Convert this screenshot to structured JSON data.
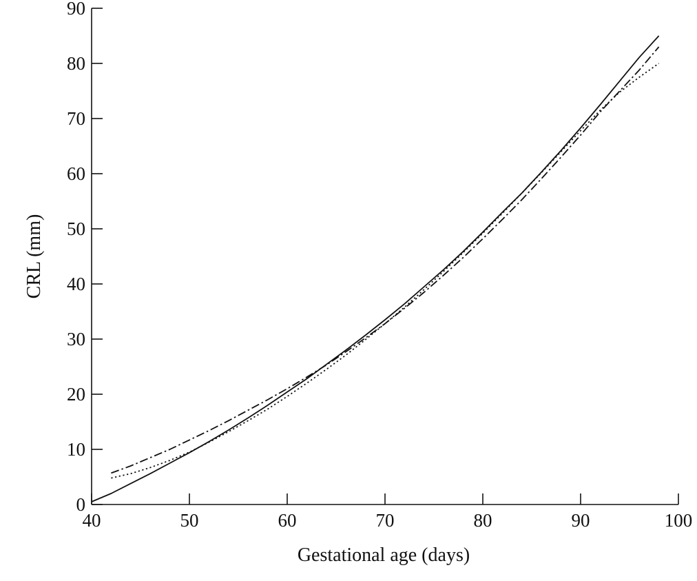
{
  "chart_data": {
    "type": "line",
    "title": "",
    "xlabel": "Gestational age (days)",
    "ylabel": "CRL (mm)",
    "xlim": [
      40,
      100
    ],
    "ylim": [
      0,
      90
    ],
    "x_ticks": [
      "40",
      "50",
      "60",
      "70",
      "80",
      "90",
      "100"
    ],
    "y_ticks": [
      "0",
      "10",
      "20",
      "30",
      "40",
      "50",
      "60",
      "70",
      "80",
      "90"
    ],
    "grid": false,
    "legend": "none",
    "series": [
      {
        "style": "solid",
        "x": [
          40,
          42,
          44,
          46,
          48,
          50,
          52,
          54,
          56,
          58,
          60,
          62,
          64,
          66,
          68,
          70,
          72,
          74,
          76,
          78,
          80,
          82,
          84,
          86,
          88,
          90,
          92,
          94,
          96,
          98
        ],
        "y": [
          0.5,
          2.0,
          3.8,
          5.6,
          7.5,
          9.4,
          11.4,
          13.5,
          15.7,
          18.0,
          20.4,
          22.8,
          25.4,
          28.0,
          30.7,
          33.5,
          36.4,
          39.5,
          42.6,
          45.9,
          49.4,
          53.0,
          56.5,
          60.3,
          64.2,
          68.3,
          72.5,
          76.8,
          81.1,
          85.0
        ]
      },
      {
        "style": "dotted",
        "x": [
          42,
          44,
          46,
          48,
          50,
          52,
          54,
          56,
          58,
          60,
          62,
          64,
          66,
          68,
          70,
          72,
          74,
          76,
          78,
          80,
          82,
          84,
          86,
          88,
          90,
          92,
          94,
          96,
          98
        ],
        "y": [
          4.8,
          5.6,
          6.7,
          8.0,
          9.5,
          11.3,
          13.2,
          15.2,
          17.3,
          19.6,
          22.0,
          24.5,
          27.1,
          29.9,
          32.8,
          35.8,
          39.0,
          42.3,
          45.7,
          49.2,
          52.8,
          56.5,
          60.2,
          64.0,
          67.8,
          71.5,
          74.8,
          77.5,
          80.0
        ]
      },
      {
        "style": "dash-dot",
        "x": [
          42,
          44,
          46,
          48,
          50,
          52,
          54,
          56,
          58,
          60,
          62,
          64,
          66,
          68,
          70,
          72,
          74,
          76,
          78,
          80,
          82,
          84,
          86,
          88,
          90,
          92,
          94,
          96,
          98
        ],
        "y": [
          5.7,
          7.0,
          8.5,
          10.0,
          11.7,
          13.4,
          15.2,
          17.1,
          19.0,
          21.0,
          23.1,
          25.3,
          27.7,
          30.2,
          32.8,
          35.6,
          38.5,
          41.6,
          44.8,
          48.2,
          51.7,
          55.3,
          59.1,
          63.0,
          67.0,
          71.2,
          75.0,
          78.8,
          83.0
        ]
      }
    ]
  }
}
